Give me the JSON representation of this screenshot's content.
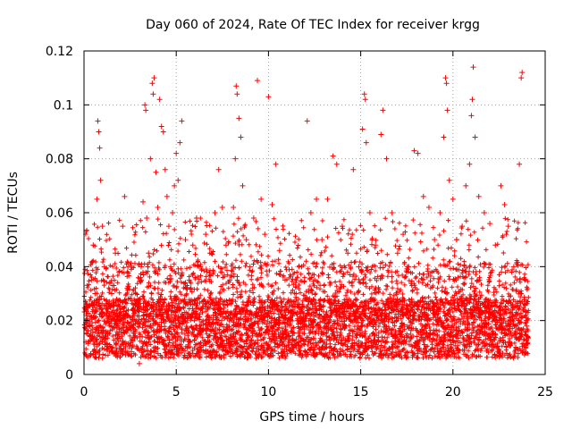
{
  "chart_data": {
    "type": "scatter",
    "title": "Day 060 of 2024, Rate Of TEC Index for receiver krgg",
    "xlabel": "GPS time / hours",
    "ylabel": "ROTI / TECUs",
    "xlim": [
      0,
      25
    ],
    "ylim": [
      0,
      0.12
    ],
    "xticks": [
      0,
      5,
      10,
      15,
      20,
      25
    ],
    "xtick_labels": [
      "0",
      "5",
      "10",
      "15",
      "20",
      "25"
    ],
    "yticks": [
      0,
      0.02,
      0.04,
      0.06,
      0.08,
      0.1,
      0.12
    ],
    "ytick_labels": [
      "0",
      "0.02",
      "0.04",
      "0.06",
      "0.08",
      "0.1",
      "0.12"
    ],
    "grid": true,
    "marker": "+",
    "color": "#ff0000",
    "series": [
      {
        "name": "ROTI",
        "points": [
          [
            0.1,
            0.012
          ],
          [
            0.2,
            0.025
          ],
          [
            0.3,
            0.018
          ],
          [
            0.4,
            0.035
          ],
          [
            0.5,
            0.048
          ],
          [
            0.6,
            0.03
          ],
          [
            0.7,
            0.065
          ],
          [
            0.75,
            0.094
          ],
          [
            0.8,
            0.09
          ],
          [
            0.85,
            0.084
          ],
          [
            0.9,
            0.072
          ],
          [
            1.0,
            0.055
          ],
          [
            1.1,
            0.04
          ],
          [
            1.2,
            0.022
          ],
          [
            1.3,
            0.015
          ],
          [
            1.5,
            0.03
          ],
          [
            1.7,
            0.045
          ],
          [
            1.9,
            0.038
          ],
          [
            2.1,
            0.055
          ],
          [
            2.2,
            0.066
          ],
          [
            2.4,
            0.028
          ],
          [
            2.6,
            0.018
          ],
          [
            2.8,
            0.03
          ],
          [
            3.0,
            0.004
          ],
          [
            3.1,
            0.04
          ],
          [
            3.2,
            0.064
          ],
          [
            3.3,
            0.1
          ],
          [
            3.35,
            0.098
          ],
          [
            3.4,
            0.058
          ],
          [
            3.5,
            0.045
          ],
          [
            3.6,
            0.08
          ],
          [
            3.7,
            0.108
          ],
          [
            3.75,
            0.104
          ],
          [
            3.8,
            0.11
          ],
          [
            3.9,
            0.075
          ],
          [
            4.0,
            0.062
          ],
          [
            4.1,
            0.102
          ],
          [
            4.2,
            0.092
          ],
          [
            4.3,
            0.09
          ],
          [
            4.4,
            0.076
          ],
          [
            4.5,
            0.066
          ],
          [
            4.6,
            0.055
          ],
          [
            4.7,
            0.04
          ],
          [
            4.8,
            0.06
          ],
          [
            4.9,
            0.07
          ],
          [
            5.0,
            0.082
          ],
          [
            5.1,
            0.072
          ],
          [
            5.2,
            0.086
          ],
          [
            5.3,
            0.094
          ],
          [
            5.5,
            0.05
          ],
          [
            5.7,
            0.035
          ],
          [
            5.9,
            0.048
          ],
          [
            6.1,
            0.058
          ],
          [
            6.3,
            0.04
          ],
          [
            6.6,
            0.052
          ],
          [
            6.9,
            0.045
          ],
          [
            7.1,
            0.06
          ],
          [
            7.3,
            0.076
          ],
          [
            7.5,
            0.062
          ],
          [
            7.7,
            0.048
          ],
          [
            7.9,
            0.035
          ],
          [
            8.1,
            0.062
          ],
          [
            8.2,
            0.08
          ],
          [
            8.25,
            0.107
          ],
          [
            8.3,
            0.104
          ],
          [
            8.4,
            0.095
          ],
          [
            8.5,
            0.088
          ],
          [
            8.6,
            0.07
          ],
          [
            8.8,
            0.05
          ],
          [
            9.0,
            0.04
          ],
          [
            9.2,
            0.058
          ],
          [
            9.4,
            0.109
          ],
          [
            9.6,
            0.065
          ],
          [
            9.8,
            0.052
          ],
          [
            10.0,
            0.103
          ],
          [
            10.2,
            0.063
          ],
          [
            10.4,
            0.078
          ],
          [
            10.6,
            0.046
          ],
          [
            10.9,
            0.035
          ],
          [
            11.2,
            0.02
          ],
          [
            11.5,
            0.03
          ],
          [
            11.8,
            0.04
          ],
          [
            12.1,
            0.094
          ],
          [
            12.3,
            0.06
          ],
          [
            12.6,
            0.065
          ],
          [
            12.9,
            0.05
          ],
          [
            13.2,
            0.065
          ],
          [
            13.5,
            0.081
          ],
          [
            13.7,
            0.078
          ],
          [
            14.0,
            0.055
          ],
          [
            14.3,
            0.045
          ],
          [
            14.6,
            0.076
          ],
          [
            14.9,
            0.04
          ],
          [
            15.1,
            0.091
          ],
          [
            15.2,
            0.104
          ],
          [
            15.25,
            0.102
          ],
          [
            15.3,
            0.086
          ],
          [
            15.5,
            0.06
          ],
          [
            15.8,
            0.048
          ],
          [
            16.1,
            0.089
          ],
          [
            16.2,
            0.098
          ],
          [
            16.4,
            0.08
          ],
          [
            16.7,
            0.06
          ],
          [
            17.0,
            0.045
          ],
          [
            17.3,
            0.052
          ],
          [
            17.6,
            0.04
          ],
          [
            17.9,
            0.083
          ],
          [
            18.1,
            0.082
          ],
          [
            18.4,
            0.066
          ],
          [
            18.7,
            0.062
          ],
          [
            19.0,
            0.05
          ],
          [
            19.3,
            0.06
          ],
          [
            19.5,
            0.088
          ],
          [
            19.6,
            0.11
          ],
          [
            19.65,
            0.108
          ],
          [
            19.7,
            0.098
          ],
          [
            19.8,
            0.072
          ],
          [
            20.0,
            0.065
          ],
          [
            20.2,
            0.05
          ],
          [
            20.5,
            0.055
          ],
          [
            20.7,
            0.07
          ],
          [
            20.9,
            0.078
          ],
          [
            21.0,
            0.096
          ],
          [
            21.05,
            0.102
          ],
          [
            21.1,
            0.114
          ],
          [
            21.2,
            0.088
          ],
          [
            21.4,
            0.066
          ],
          [
            21.7,
            0.06
          ],
          [
            22.0,
            0.056
          ],
          [
            22.3,
            0.048
          ],
          [
            22.6,
            0.07
          ],
          [
            22.8,
            0.063
          ],
          [
            23.0,
            0.055
          ],
          [
            23.3,
            0.04
          ],
          [
            23.6,
            0.078
          ],
          [
            23.7,
            0.11
          ],
          [
            23.75,
            0.112
          ],
          [
            23.9,
            0.035
          ],
          [
            24.0,
            0.018
          ]
        ]
      }
    ]
  }
}
